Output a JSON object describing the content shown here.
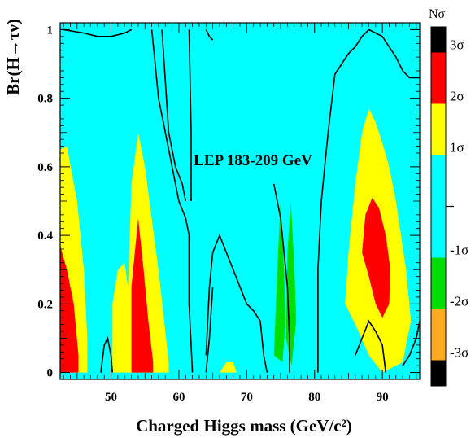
{
  "chart_data": {
    "type": "heatmap",
    "title": "",
    "xlabel": "Charged Higgs mass (GeV/c²)",
    "ylabel": "Br(H→τν)",
    "xlim": [
      42.5,
      95.5
    ],
    "ylim": [
      -0.02,
      1.02
    ],
    "xticks": [
      50,
      60,
      70,
      80,
      90
    ],
    "yticks": [
      0,
      0.2,
      0.4,
      0.6,
      0.8,
      1
    ],
    "xtick_labels": [
      "50",
      "60",
      "70",
      "80",
      "90"
    ],
    "ytick_labels": [
      "0",
      "0.2",
      "0.4",
      "0.6",
      "0.8",
      "1"
    ],
    "annotation": "LEP 183-209 GeV",
    "colorbar": {
      "title": "Nσ",
      "labels": [
        "3σ",
        "2σ",
        "1σ",
        "-1σ",
        "-2σ",
        "-3σ"
      ],
      "bands": [
        {
          "from": 3.5,
          "to": 3,
          "color": "#000000"
        },
        {
          "from": 3,
          "to": 2,
          "color": "#ff0000"
        },
        {
          "from": 2,
          "to": 1,
          "color": "#ffff00"
        },
        {
          "from": 1,
          "to": -1,
          "color": "#00ffff"
        },
        {
          "from": -1,
          "to": -2,
          "color": "#00dd00"
        },
        {
          "from": -2,
          "to": -3,
          "color": "#ffaa22"
        },
        {
          "from": -3,
          "to": -3.5,
          "color": "#000000"
        }
      ],
      "zero_line": true
    },
    "background_level": "cyan (-1σ to 1σ)",
    "regions": [
      {
        "level": "1σ to 2σ",
        "color": "#ffff00",
        "points": [
          [
            42.5,
            0
          ],
          [
            42.5,
            0.65
          ],
          [
            43.5,
            0.66
          ],
          [
            45,
            0.5
          ],
          [
            46,
            0.3
          ],
          [
            46.5,
            0.1
          ],
          [
            46.5,
            0
          ]
        ]
      },
      {
        "level": "2σ to 3σ",
        "color": "#ff0000",
        "points": [
          [
            42.5,
            0
          ],
          [
            42.5,
            0.37
          ],
          [
            43.5,
            0.3
          ],
          [
            44.5,
            0.2
          ],
          [
            45.2,
            0.05
          ],
          [
            45.2,
            0
          ]
        ]
      },
      {
        "level": "1σ to 2σ",
        "color": "#ffff00",
        "points": [
          [
            50.2,
            0
          ],
          [
            50.2,
            0.2
          ],
          [
            51,
            0.3
          ],
          [
            52,
            0.32
          ],
          [
            52.5,
            0.25
          ],
          [
            53,
            0.55
          ],
          [
            54,
            0.7
          ],
          [
            55,
            0.6
          ],
          [
            57,
            0.3
          ],
          [
            58,
            0.12
          ],
          [
            58.5,
            0.03
          ],
          [
            58.5,
            0
          ]
        ]
      },
      {
        "level": "2σ to 3σ",
        "color": "#ff0000",
        "points": [
          [
            53,
            0
          ],
          [
            53,
            0.25
          ],
          [
            54,
            0.45
          ],
          [
            54.8,
            0.3
          ],
          [
            55.5,
            0.15
          ],
          [
            56.2,
            0.03
          ],
          [
            56.2,
            0
          ]
        ]
      },
      {
        "level": "1σ to 2σ",
        "color": "#ffff00",
        "points": [
          [
            66,
            0
          ],
          [
            67,
            0.03
          ],
          [
            68,
            0.03
          ],
          [
            68.5,
            0
          ]
        ]
      },
      {
        "level": "-1σ to -2σ",
        "color": "#00dd00",
        "points": [
          [
            74,
            0.05
          ],
          [
            74.5,
            0.3
          ],
          [
            75,
            0.5
          ],
          [
            75.5,
            0.3
          ],
          [
            75.7,
            0.15
          ],
          [
            75.3,
            0.03
          ]
        ]
      },
      {
        "level": "-1σ to -2σ",
        "color": "#00dd00",
        "points": [
          [
            75.8,
            0.1
          ],
          [
            76,
            0.35
          ],
          [
            76.5,
            0.5
          ],
          [
            77,
            0.32
          ],
          [
            77.3,
            0.15
          ],
          [
            76.6,
            0.02
          ]
        ]
      },
      {
        "level": "1σ to 2σ",
        "color": "#ffff00",
        "points": [
          [
            84.5,
            0.2
          ],
          [
            85,
            0.35
          ],
          [
            86,
            0.55
          ],
          [
            87,
            0.7
          ],
          [
            88,
            0.77
          ],
          [
            89,
            0.73
          ],
          [
            90,
            0.67
          ],
          [
            91,
            0.6
          ],
          [
            92,
            0.5
          ],
          [
            93.5,
            0.3
          ],
          [
            94.2,
            0.15
          ],
          [
            93,
            0.03
          ],
          [
            90,
            0
          ],
          [
            88,
            0.05
          ],
          [
            86,
            0.14
          ]
        ]
      },
      {
        "level": "2σ to 3σ",
        "color": "#ff0000",
        "points": [
          [
            87,
            0.35
          ],
          [
            87.5,
            0.46
          ],
          [
            88.5,
            0.51
          ],
          [
            89.5,
            0.48
          ],
          [
            90.5,
            0.4
          ],
          [
            91.2,
            0.3
          ],
          [
            91,
            0.2
          ],
          [
            90,
            0.16
          ],
          [
            89,
            0.2
          ],
          [
            88,
            0.28
          ]
        ]
      }
    ],
    "contour_lines": [
      [
        [
          43,
          1
        ],
        [
          46,
          0.99
        ],
        [
          48,
          0.98
        ],
        [
          50,
          0.98
        ],
        [
          52,
          0.99
        ],
        [
          53,
          1.0
        ]
      ],
      [
        [
          56,
          1
        ],
        [
          56.5,
          0.9
        ],
        [
          57,
          0.8
        ],
        [
          58,
          0.7
        ],
        [
          59,
          0.6
        ],
        [
          60,
          0.5
        ],
        [
          61,
          0.45
        ],
        [
          61.5,
          0.4
        ],
        [
          61.5,
          0.2
        ],
        [
          62,
          0
        ]
      ],
      [
        [
          57.5,
          1
        ],
        [
          58,
          0.85
        ],
        [
          58.5,
          0.7
        ],
        [
          59.5,
          0.6
        ],
        [
          60.5,
          0.55
        ],
        [
          61,
          0.5
        ]
      ],
      [
        [
          61.5,
          1
        ],
        [
          61.8,
          0.7
        ],
        [
          61.8,
          0.5
        ]
      ],
      [
        [
          64,
          0.05
        ],
        [
          64.5,
          0.25
        ],
        [
          65,
          0.35
        ],
        [
          66,
          0.4
        ],
        [
          67,
          0.35
        ],
        [
          68,
          0.3
        ],
        [
          69,
          0.25
        ],
        [
          70,
          0.2
        ],
        [
          71,
          0.18
        ],
        [
          72,
          0.15
        ],
        [
          72.5,
          0.05
        ],
        [
          73,
          0
        ]
      ],
      [
        [
          64,
          0
        ],
        [
          64.5,
          0.1
        ],
        [
          65,
          0.25
        ]
      ],
      [
        [
          64,
          1
        ],
        [
          64.5,
          0.98
        ],
        [
          65,
          0.97
        ]
      ],
      [
        [
          74,
          0.55
        ],
        [
          74.5,
          0.5
        ],
        [
          75,
          0.45
        ],
        [
          75.5,
          0.35
        ],
        [
          76,
          0.25
        ],
        [
          76.3,
          0.1
        ],
        [
          76.3,
          0
        ]
      ],
      [
        [
          80.5,
          0
        ],
        [
          80.5,
          0.3
        ],
        [
          81,
          0.5
        ],
        [
          81.5,
          0.6
        ],
        [
          82,
          0.7
        ],
        [
          83,
          0.87
        ],
        [
          84,
          0.9
        ],
        [
          85,
          0.93
        ],
        [
          86,
          0.95
        ],
        [
          87,
          0.98
        ],
        [
          88,
          1
        ]
      ],
      [
        [
          88,
          1
        ],
        [
          90,
          0.98
        ],
        [
          92,
          0.92
        ],
        [
          93,
          0.88
        ],
        [
          94,
          0.86
        ],
        [
          95.5,
          0.86
        ]
      ],
      [
        [
          86,
          0.05
        ],
        [
          87,
          0.1
        ],
        [
          88,
          0.15
        ],
        [
          89,
          0.12
        ],
        [
          90,
          0.08
        ],
        [
          90.5,
          0
        ]
      ],
      [
        [
          93,
          0.02
        ],
        [
          94,
          0.05
        ],
        [
          95,
          0.1
        ],
        [
          95.5,
          0.15
        ]
      ],
      [
        [
          48.5,
          0
        ],
        [
          49,
          0.08
        ],
        [
          49.5,
          0.1
        ],
        [
          50,
          0.05
        ],
        [
          50.2,
          0
        ]
      ]
    ]
  }
}
